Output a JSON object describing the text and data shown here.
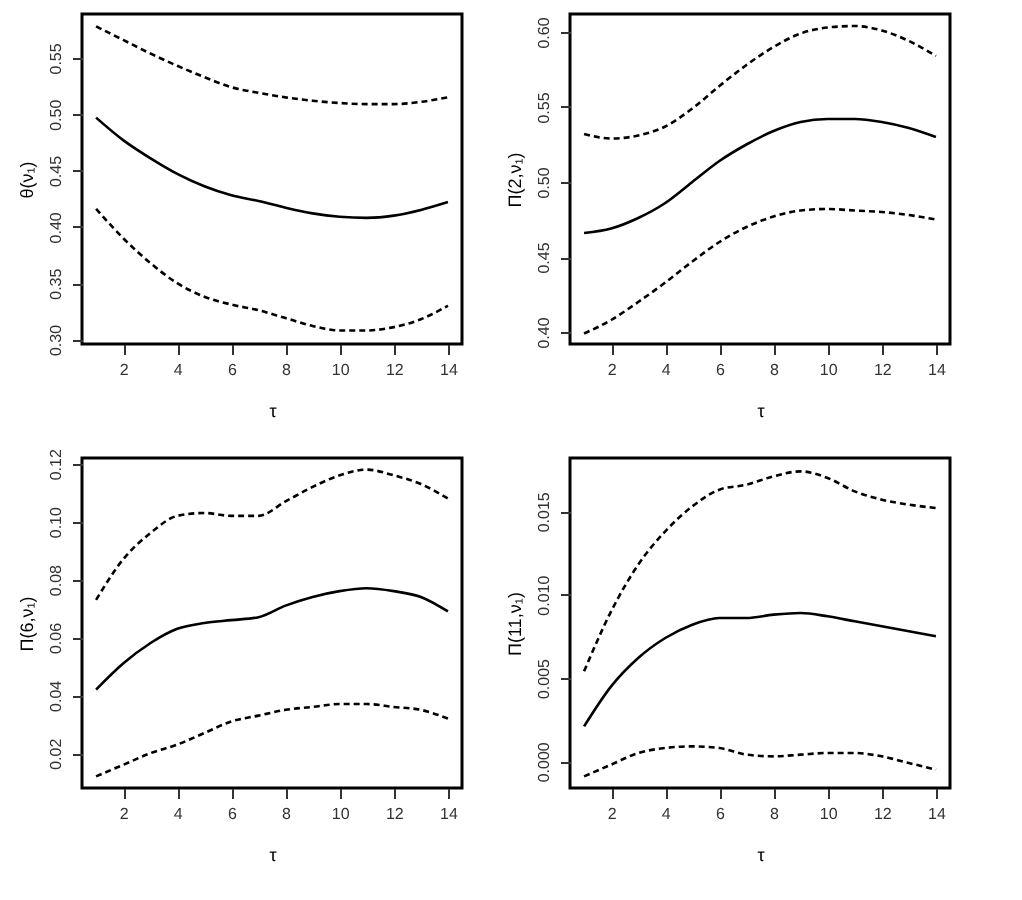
{
  "chart_data": [
    {
      "type": "line",
      "xlabel": "τ",
      "ylabel": "θ(ν₁)",
      "x": [
        1,
        2,
        3,
        4,
        5,
        6,
        7,
        8,
        9,
        10,
        11,
        12,
        13,
        14
      ],
      "xlim": [
        0.48,
        14.52
      ],
      "xticks": [
        2,
        4,
        6,
        8,
        10,
        12,
        14
      ],
      "ylim": [
        0.296,
        0.589
      ],
      "yticks": [
        {
          "value": 0.3,
          "label": "0.30"
        },
        0.35,
        {
          "value": 0.4,
          "label": "0.40"
        },
        0.45,
        {
          "value": 0.5,
          "label": "0.50"
        },
        0.55
      ],
      "grid": false,
      "marker": "none",
      "series": [
        {
          "color": "#000000",
          "line_style": "solid",
          "values": [
            0.497,
            0.477,
            0.461,
            0.447,
            0.436,
            0.428,
            0.423,
            0.417,
            0.412,
            0.409,
            0.408,
            0.41,
            0.415,
            0.422
          ]
        },
        {
          "color": "#000000",
          "line_style": "dashed",
          "values": [
            0.578,
            0.566,
            0.554,
            0.543,
            0.533,
            0.524,
            0.519,
            0.515,
            0.512,
            0.51,
            0.509,
            0.509,
            0.511,
            0.515
          ]
        },
        {
          "color": "#000000",
          "line_style": "dashed",
          "values": [
            0.416,
            0.39,
            0.368,
            0.35,
            0.338,
            0.331,
            0.326,
            0.319,
            0.312,
            0.308,
            0.308,
            0.311,
            0.318,
            0.33
          ]
        }
      ]
    },
    {
      "type": "line",
      "xlabel": "τ",
      "ylabel": "Π(2,ν₁)",
      "x": [
        1,
        2,
        3,
        4,
        5,
        6,
        7,
        8,
        9,
        10,
        11,
        12,
        13,
        14
      ],
      "xlim": [
        0.48,
        14.52
      ],
      "xticks": [
        2,
        4,
        6,
        8,
        10,
        12,
        14
      ],
      "ylim": [
        0.392,
        0.612
      ],
      "yticks": [
        {
          "value": 0.4,
          "label": "0.40"
        },
        0.45,
        {
          "value": 0.5,
          "label": "0.50"
        },
        0.55,
        {
          "value": 0.6,
          "label": "0.60"
        }
      ],
      "grid": false,
      "marker": "none",
      "series": [
        {
          "color": "#000000",
          "line_style": "solid",
          "values": [
            0.466,
            0.469,
            0.476,
            0.486,
            0.5,
            0.514,
            0.525,
            0.534,
            0.54,
            0.542,
            0.542,
            0.54,
            0.536,
            0.53
          ]
        },
        {
          "color": "#000000",
          "line_style": "dashed",
          "values": [
            0.532,
            0.529,
            0.531,
            0.537,
            0.549,
            0.564,
            0.578,
            0.59,
            0.599,
            0.603,
            0.604,
            0.601,
            0.594,
            0.584
          ]
        },
        {
          "color": "#000000",
          "line_style": "dashed",
          "values": [
            0.399,
            0.408,
            0.42,
            0.433,
            0.447,
            0.46,
            0.47,
            0.477,
            0.481,
            0.482,
            0.481,
            0.48,
            0.478,
            0.475
          ]
        }
      ]
    },
    {
      "type": "line",
      "xlabel": "τ",
      "ylabel": "Π(6,ν₁)",
      "x": [
        1,
        2,
        3,
        4,
        5,
        6,
        7,
        8,
        9,
        10,
        11,
        12,
        13,
        14
      ],
      "xlim": [
        0.48,
        14.52
      ],
      "xticks": [
        2,
        4,
        6,
        8,
        10,
        12,
        14
      ],
      "ylim": [
        0.008,
        0.122
      ],
      "yticks": [
        0.02,
        0.04,
        0.06,
        0.08,
        {
          "value": 0.1,
          "label": "0.10"
        },
        0.12
      ],
      "grid": false,
      "marker": "none",
      "series": [
        {
          "color": "#000000",
          "line_style": "solid",
          "values": [
            0.042,
            0.051,
            0.058,
            0.063,
            0.065,
            0.066,
            0.067,
            0.071,
            0.074,
            0.076,
            0.077,
            0.076,
            0.074,
            0.069
          ]
        },
        {
          "color": "#000000",
          "line_style": "dashed",
          "values": [
            0.073,
            0.087,
            0.096,
            0.102,
            0.103,
            0.102,
            0.102,
            0.107,
            0.112,
            0.116,
            0.118,
            0.116,
            0.113,
            0.108
          ]
        },
        {
          "color": "#000000",
          "line_style": "dashed",
          "values": [
            0.012,
            0.016,
            0.02,
            0.023,
            0.027,
            0.031,
            0.033,
            0.035,
            0.036,
            0.037,
            0.037,
            0.036,
            0.035,
            0.032
          ]
        }
      ]
    },
    {
      "type": "line",
      "xlabel": "τ",
      "ylabel": "Π(11,ν₁)",
      "x": [
        1,
        2,
        3,
        4,
        5,
        6,
        7,
        8,
        9,
        10,
        11,
        12,
        13,
        14
      ],
      "xlim": [
        0.48,
        14.52
      ],
      "xticks": [
        2,
        4,
        6,
        8,
        10,
        12,
        14
      ],
      "ylim": [
        -0.0016,
        0.0182
      ],
      "yticks": [
        {
          "value": 0,
          "label": "0.000"
        },
        0.005,
        {
          "value": 0.01,
          "label": "0.010"
        },
        0.015
      ],
      "grid": false,
      "marker": "none",
      "series": [
        {
          "color": "#000000",
          "line_style": "solid",
          "values": [
            0.0021,
            0.0045,
            0.0062,
            0.0074,
            0.0082,
            0.0086,
            0.0086,
            0.0088,
            0.0089,
            0.0087,
            0.0084,
            0.0081,
            0.0078,
            0.0075
          ]
        },
        {
          "color": "#000000",
          "line_style": "dashed",
          "values": [
            0.0054,
            0.009,
            0.0118,
            0.0138,
            0.0153,
            0.0163,
            0.0166,
            0.0171,
            0.0174,
            0.017,
            0.0162,
            0.0157,
            0.0154,
            0.0152
          ]
        },
        {
          "color": "#000000",
          "line_style": "dashed",
          "values": [
            -0.0009,
            -0.0002,
            0.0005,
            0.0008,
            0.0009,
            0.0008,
            0.0004,
            0.0003,
            0.0004,
            0.0005,
            0.0005,
            0.0003,
            -0.0001,
            -0.0005
          ]
        }
      ]
    }
  ]
}
